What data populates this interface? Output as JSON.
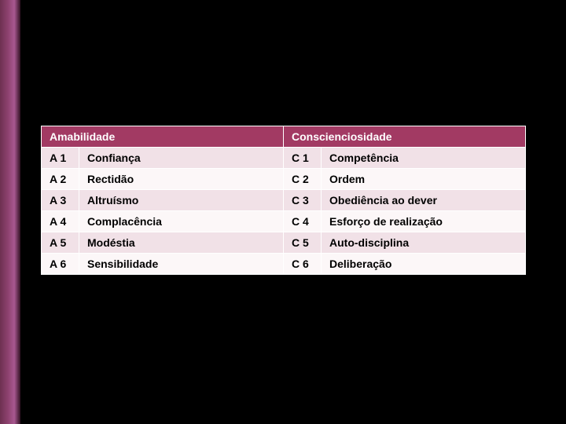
{
  "table": {
    "header_bg": "#a23a63",
    "header_fg": "#ffffff",
    "row_odd_bg": "#f1e1e7",
    "row_even_bg": "#fcf7f8",
    "text_color": "#000000",
    "border_color": "#ffffff",
    "font_family": "Trebuchet MS",
    "font_size_pt": 11,
    "headers": {
      "left": "Amabilidade",
      "right": "Conscienciosidade"
    },
    "rows": [
      {
        "a_code": "A 1",
        "a_label": "Confiança",
        "c_code": "C 1",
        "c_label": "Competência"
      },
      {
        "a_code": "A 2",
        "a_label": "Rectidão",
        "c_code": "C 2",
        "c_label": "Ordem"
      },
      {
        "a_code": "A 3",
        "a_label": "Altruísmo",
        "c_code": "C 3",
        "c_label": "Obediência ao dever"
      },
      {
        "a_code": "A 4",
        "a_label": "Complacência",
        "c_code": "C 4",
        "c_label": "Esforço de realização"
      },
      {
        "a_code": "A 5",
        "a_label": "Modéstia",
        "c_code": "C 5",
        "c_label": "Auto-disciplina"
      },
      {
        "a_code": "A 6",
        "a_label": "Sensibilidade",
        "c_code": "C 6",
        "c_label": "Deliberação"
      }
    ]
  },
  "slide": {
    "background": "#000000",
    "accent_gradient": [
      "#6d3050",
      "#8e4270",
      "#a85890",
      "#301022"
    ]
  }
}
